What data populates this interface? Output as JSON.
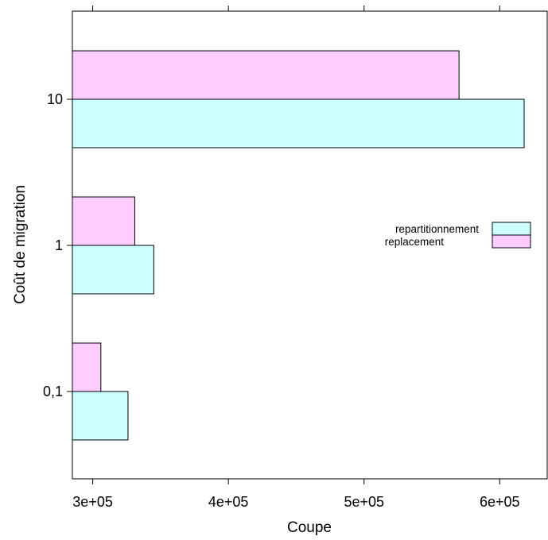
{
  "chart_data": {
    "type": "bar",
    "orientation": "horizontal",
    "xlabel": "Coupe",
    "ylabel": "Coût de migration",
    "categories": [
      "0,1",
      "1",
      "10"
    ],
    "series": [
      {
        "name": "repartitionnement",
        "color": "#ccffff",
        "values": [
          326000,
          345000,
          618000
        ]
      },
      {
        "name": "replacement",
        "color": "#ffccff",
        "values": [
          306000,
          331000,
          570000
        ]
      }
    ],
    "x_ticks": [
      "3e+05",
      "4e+05",
      "5e+05",
      "6e+05"
    ],
    "x_tick_values": [
      300000,
      400000,
      500000,
      600000
    ],
    "xlim": [
      285000,
      635000
    ],
    "legend_position": "right",
    "grid": false
  }
}
